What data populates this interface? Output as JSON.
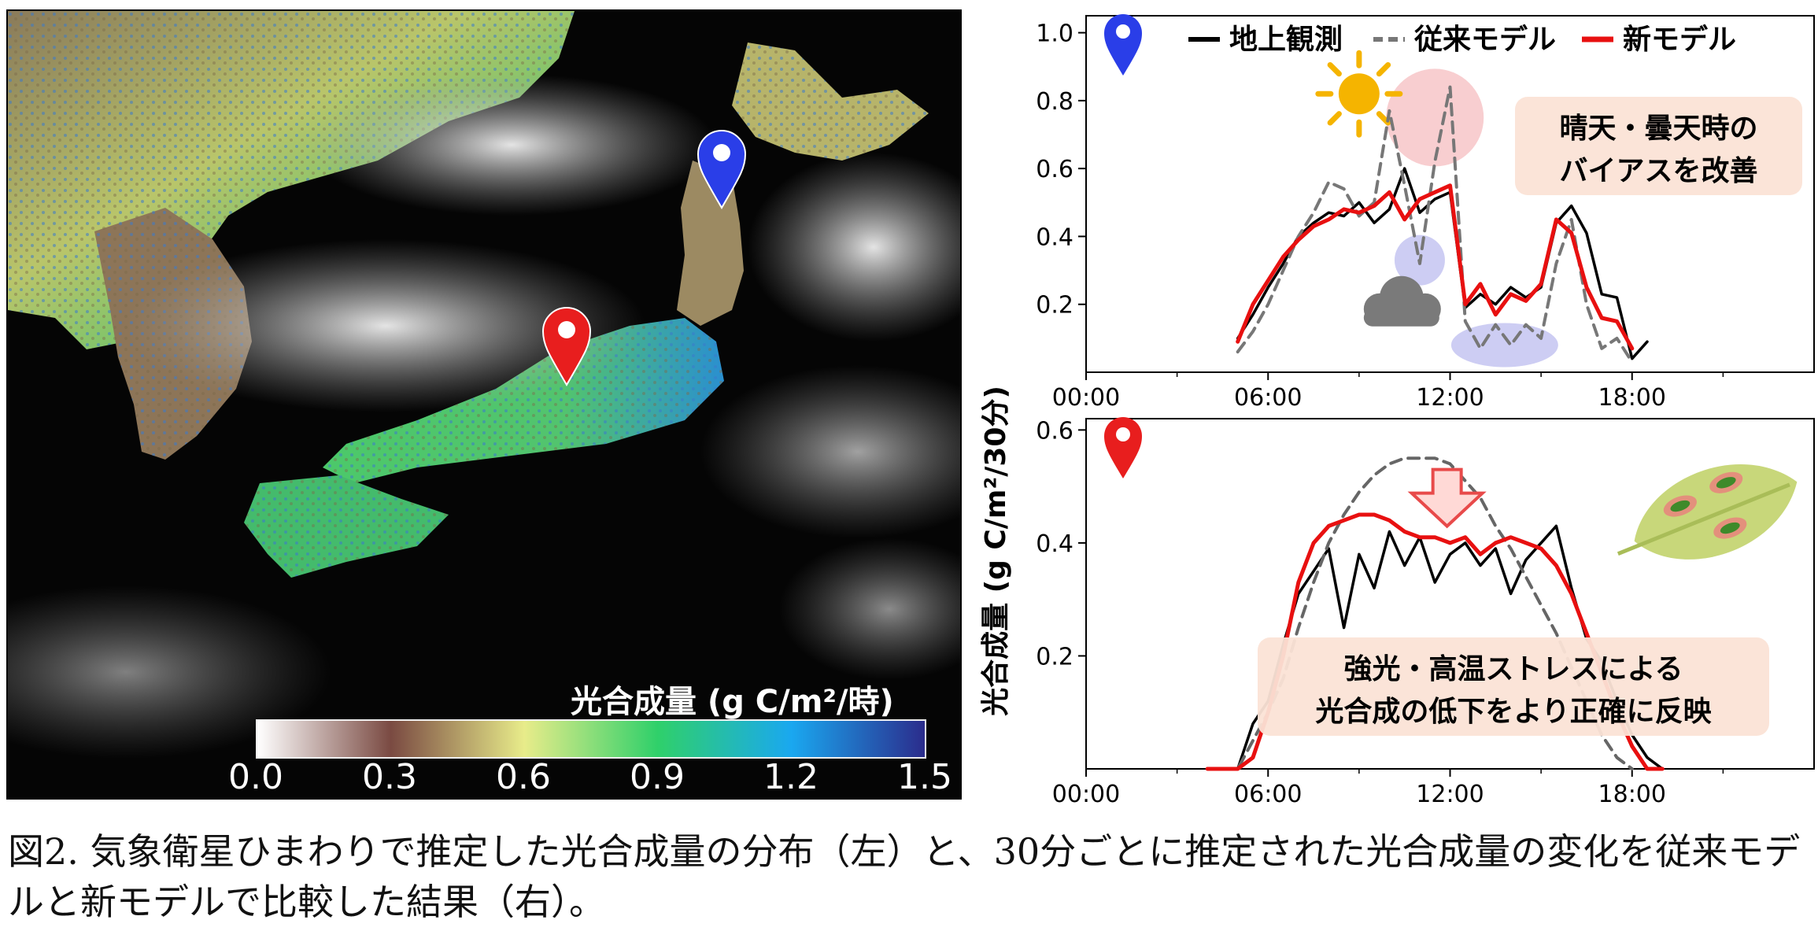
{
  "map": {
    "colorbar_title": "光合成量 (g C/m²/時)",
    "colorbar_ticks": [
      "0.0",
      "0.3",
      "0.6",
      "0.9",
      "1.2",
      "1.5"
    ],
    "colorbar_colors": [
      "#ffffff",
      "#7a4a42",
      "#e8ec8a",
      "#2fd06a",
      "#1aa8f0",
      "#2b2c8c"
    ],
    "markers": [
      {
        "name": "north-site-marker",
        "color": "#2a3ee8"
      },
      {
        "name": "central-site-marker",
        "color": "#e81e1e"
      }
    ]
  },
  "y_axis_label": "光合成量 (g C/m²/30分)",
  "legend": [
    {
      "label": "地上観測",
      "color": "#000000",
      "style": "solid"
    },
    {
      "label": "従来モデル",
      "color": "#777777",
      "style": "dashed"
    },
    {
      "label": "新モデル",
      "color": "#e81010",
      "style": "solid"
    }
  ],
  "chart_data": [
    {
      "type": "line",
      "xlabel": "",
      "ylabel": "光合成量 (g C/m²/30分)",
      "xlim": [
        0,
        24
      ],
      "ylim": [
        0,
        1.05
      ],
      "x_ticks": [
        "00:00",
        "06:00",
        "12:00",
        "18:00"
      ],
      "y_ticks": [
        "0.2",
        "0.4",
        "0.6",
        "0.8",
        "1.0"
      ],
      "annotation": [
        "晴天・曇天時の",
        "バイアスを改善"
      ],
      "series": [
        {
          "name": "地上観測",
          "color": "#000000",
          "dash": "",
          "points": [
            [
              5,
              0.1
            ],
            [
              5.5,
              0.17
            ],
            [
              6,
              0.25
            ],
            [
              6.5,
              0.32
            ],
            [
              7,
              0.4
            ],
            [
              7.5,
              0.44
            ],
            [
              8,
              0.47
            ],
            [
              8.5,
              0.46
            ],
            [
              9,
              0.5
            ],
            [
              9.5,
              0.44
            ],
            [
              10,
              0.48
            ],
            [
              10.5,
              0.6
            ],
            [
              11,
              0.47
            ],
            [
              11.5,
              0.51
            ],
            [
              12,
              0.53
            ],
            [
              12.5,
              0.19
            ],
            [
              13,
              0.23
            ],
            [
              13.5,
              0.2
            ],
            [
              14,
              0.25
            ],
            [
              14.5,
              0.22
            ],
            [
              15,
              0.25
            ],
            [
              15.5,
              0.44
            ],
            [
              16,
              0.49
            ],
            [
              16.5,
              0.41
            ],
            [
              17,
              0.23
            ],
            [
              17.5,
              0.22
            ],
            [
              18,
              0.04
            ],
            [
              18.5,
              0.09
            ]
          ]
        },
        {
          "name": "従来モデル",
          "color": "#777777",
          "dash": "14,9",
          "points": [
            [
              5,
              0.06
            ],
            [
              5.5,
              0.12
            ],
            [
              6,
              0.2
            ],
            [
              6.5,
              0.3
            ],
            [
              7,
              0.4
            ],
            [
              7.5,
              0.47
            ],
            [
              8,
              0.56
            ],
            [
              8.5,
              0.54
            ],
            [
              9,
              0.46
            ],
            [
              9.5,
              0.5
            ],
            [
              10,
              0.77
            ],
            [
              10.5,
              0.55
            ],
            [
              11,
              0.32
            ],
            [
              11.5,
              0.62
            ],
            [
              12,
              0.84
            ],
            [
              12.5,
              0.15
            ],
            [
              13,
              0.07
            ],
            [
              13.5,
              0.14
            ],
            [
              14,
              0.08
            ],
            [
              14.5,
              0.14
            ],
            [
              15,
              0.1
            ],
            [
              15.5,
              0.32
            ],
            [
              16,
              0.45
            ],
            [
              16.5,
              0.2
            ],
            [
              17,
              0.07
            ],
            [
              17.5,
              0.1
            ],
            [
              18,
              0.03
            ]
          ]
        },
        {
          "name": "新モデル",
          "color": "#e81010",
          "dash": "",
          "points": [
            [
              5,
              0.09
            ],
            [
              5.5,
              0.2
            ],
            [
              6,
              0.27
            ],
            [
              6.5,
              0.34
            ],
            [
              7,
              0.39
            ],
            [
              7.5,
              0.43
            ],
            [
              8,
              0.45
            ],
            [
              8.5,
              0.48
            ],
            [
              9,
              0.47
            ],
            [
              9.5,
              0.49
            ],
            [
              10,
              0.53
            ],
            [
              10.5,
              0.45
            ],
            [
              11,
              0.51
            ],
            [
              11.5,
              0.53
            ],
            [
              12,
              0.55
            ],
            [
              12.5,
              0.2
            ],
            [
              13,
              0.26
            ],
            [
              13.5,
              0.17
            ],
            [
              14,
              0.23
            ],
            [
              14.5,
              0.21
            ],
            [
              15,
              0.26
            ],
            [
              15.5,
              0.45
            ],
            [
              16,
              0.41
            ],
            [
              16.5,
              0.25
            ],
            [
              17,
              0.16
            ],
            [
              17.5,
              0.15
            ],
            [
              18,
              0.07
            ]
          ]
        }
      ]
    },
    {
      "type": "line",
      "xlabel": "",
      "ylabel": "光合成量 (g C/m²/30分)",
      "xlim": [
        0,
        24
      ],
      "ylim": [
        0,
        0.62
      ],
      "x_ticks": [
        "00:00",
        "06:00",
        "12:00",
        "18:00"
      ],
      "y_ticks": [
        "0.2",
        "0.4",
        "0.6"
      ],
      "annotation": [
        "強光・高温ストレスによる",
        "光合成の低下をより正確に反映"
      ],
      "series": [
        {
          "name": "地上観測",
          "color": "#000000",
          "dash": "",
          "points": [
            [
              4.5,
              0
            ],
            [
              5,
              0.0
            ],
            [
              5.5,
              0.08
            ],
            [
              6,
              0.12
            ],
            [
              6.5,
              0.22
            ],
            [
              7,
              0.31
            ],
            [
              7.5,
              0.35
            ],
            [
              8,
              0.39
            ],
            [
              8.5,
              0.25
            ],
            [
              9,
              0.38
            ],
            [
              9.5,
              0.32
            ],
            [
              10,
              0.42
            ],
            [
              10.5,
              0.36
            ],
            [
              11,
              0.41
            ],
            [
              11.5,
              0.33
            ],
            [
              12,
              0.38
            ],
            [
              12.5,
              0.4
            ],
            [
              13,
              0.36
            ],
            [
              13.5,
              0.39
            ],
            [
              14,
              0.31
            ],
            [
              14.5,
              0.37
            ],
            [
              15,
              0.4
            ],
            [
              15.5,
              0.43
            ],
            [
              16,
              0.32
            ],
            [
              16.5,
              0.23
            ],
            [
              17,
              0.19
            ],
            [
              17.5,
              0.12
            ],
            [
              18,
              0.06
            ],
            [
              18.5,
              0.02
            ],
            [
              19,
              0.0
            ]
          ]
        },
        {
          "name": "従来モデル",
          "color": "#666666",
          "dash": "14,9",
          "points": [
            [
              4.5,
              0
            ],
            [
              5,
              0.0
            ],
            [
              5.5,
              0.05
            ],
            [
              6,
              0.1
            ],
            [
              6.5,
              0.16
            ],
            [
              7,
              0.25
            ],
            [
              7.5,
              0.33
            ],
            [
              8,
              0.4
            ],
            [
              8.5,
              0.45
            ],
            [
              9,
              0.49
            ],
            [
              9.5,
              0.52
            ],
            [
              10,
              0.54
            ],
            [
              10.5,
              0.55
            ],
            [
              11,
              0.55
            ],
            [
              11.5,
              0.55
            ],
            [
              12,
              0.54
            ],
            [
              12.5,
              0.51
            ],
            [
              13,
              0.48
            ],
            [
              13.5,
              0.43
            ],
            [
              14,
              0.39
            ],
            [
              14.5,
              0.34
            ],
            [
              15,
              0.29
            ],
            [
              15.5,
              0.24
            ],
            [
              16,
              0.18
            ],
            [
              16.5,
              0.12
            ],
            [
              17,
              0.06
            ],
            [
              17.5,
              0.02
            ],
            [
              18,
              0.0
            ]
          ]
        },
        {
          "name": "新モデル",
          "color": "#e81010",
          "dash": "",
          "points": [
            [
              4,
              0
            ],
            [
              5,
              0.0
            ],
            [
              5.5,
              0.02
            ],
            [
              6,
              0.1
            ],
            [
              6.5,
              0.2
            ],
            [
              7,
              0.33
            ],
            [
              7.5,
              0.4
            ],
            [
              8,
              0.43
            ],
            [
              8.5,
              0.44
            ],
            [
              9,
              0.45
            ],
            [
              9.5,
              0.45
            ],
            [
              10,
              0.44
            ],
            [
              10.5,
              0.42
            ],
            [
              11,
              0.41
            ],
            [
              11.5,
              0.41
            ],
            [
              12,
              0.4
            ],
            [
              12.5,
              0.41
            ],
            [
              13,
              0.38
            ],
            [
              13.5,
              0.4
            ],
            [
              14,
              0.41
            ],
            [
              14.5,
              0.4
            ],
            [
              15,
              0.39
            ],
            [
              15.5,
              0.36
            ],
            [
              16,
              0.31
            ],
            [
              16.5,
              0.24
            ],
            [
              17,
              0.17
            ],
            [
              17.5,
              0.1
            ],
            [
              18,
              0.04
            ],
            [
              18.5,
              0.0
            ],
            [
              19,
              0.0
            ]
          ]
        }
      ]
    }
  ],
  "caption": "図2. 気象衛星ひまわりで推定した光合成量の分布（左）と、30分ごとに推定された光合成量の変化を従来モデルと新モデルで比較した結果（右）。"
}
